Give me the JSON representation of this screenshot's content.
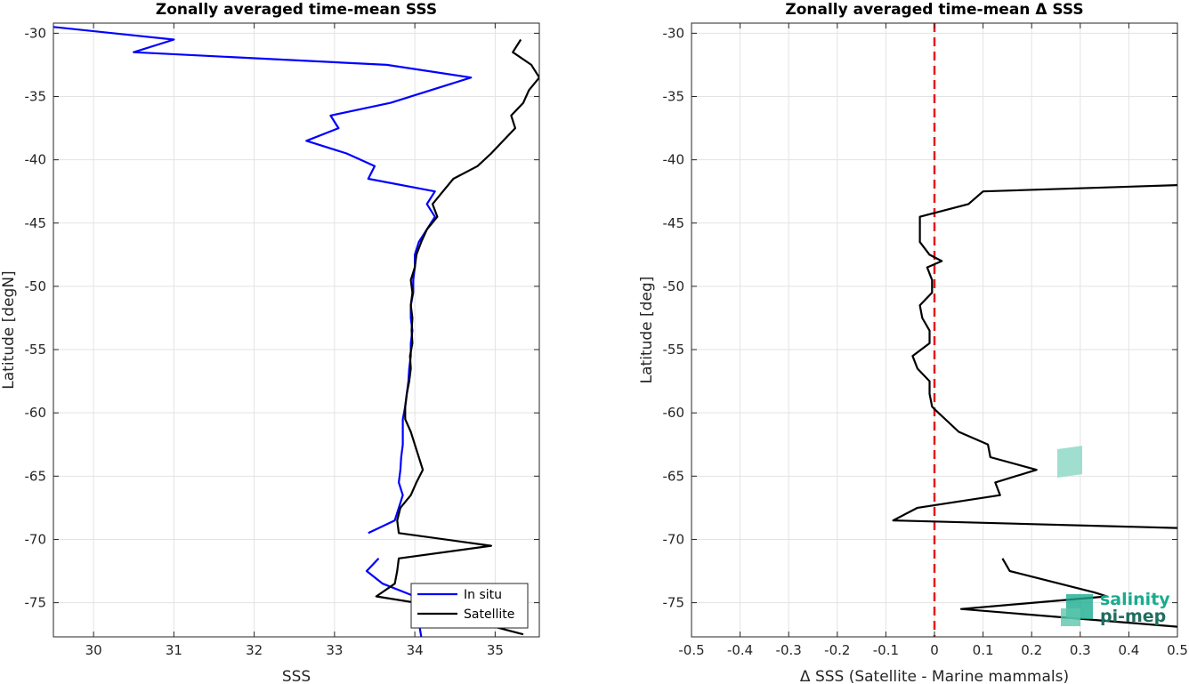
{
  "chart_data": [
    {
      "type": "line",
      "title": "Zonally averaged time-mean SSS",
      "xlabel": "SSS",
      "ylabel": "Latitude [degN]",
      "xlim": [
        29.5,
        35.55
      ],
      "ylim": [
        -77.7,
        -29.2
      ],
      "xticks": [
        30,
        31,
        32,
        33,
        34,
        35
      ],
      "yticks": [
        -30,
        -35,
        -40,
        -45,
        -50,
        -55,
        -60,
        -65,
        -70,
        -75
      ],
      "grid": true,
      "legend": "bottom-right",
      "series": [
        {
          "name": "In situ",
          "color": "#0000ff",
          "segments": [
            [
              {
                "x": 29.5,
                "y": -29.5
              },
              {
                "x": 31.0,
                "y": -30.5
              },
              {
                "x": 30.5,
                "y": -31.5
              },
              {
                "x": 33.65,
                "y": -32.5
              },
              {
                "x": 34.7,
                "y": -33.5
              },
              {
                "x": 33.7,
                "y": -35.5
              },
              {
                "x": 32.95,
                "y": -36.5
              },
              {
                "x": 33.05,
                "y": -37.5
              },
              {
                "x": 32.65,
                "y": -38.5
              },
              {
                "x": 33.15,
                "y": -39.5
              },
              {
                "x": 33.5,
                "y": -40.5
              },
              {
                "x": 33.42,
                "y": -41.5
              },
              {
                "x": 34.25,
                "y": -42.5
              },
              {
                "x": 34.15,
                "y": -43.5
              },
              {
                "x": 34.25,
                "y": -44.5
              },
              {
                "x": 34.15,
                "y": -45.5
              },
              {
                "x": 34.05,
                "y": -46.5
              },
              {
                "x": 34.0,
                "y": -47.5
              },
              {
                "x": 34.0,
                "y": -48.5
              },
              {
                "x": 33.98,
                "y": -49.5
              },
              {
                "x": 33.98,
                "y": -50.5
              },
              {
                "x": 33.95,
                "y": -51.5
              },
              {
                "x": 33.95,
                "y": -52.5
              },
              {
                "x": 33.97,
                "y": -53.5
              },
              {
                "x": 33.95,
                "y": -54.5
              },
              {
                "x": 33.95,
                "y": -55.5
              },
              {
                "x": 33.93,
                "y": -56.5
              },
              {
                "x": 33.92,
                "y": -57.5
              },
              {
                "x": 33.9,
                "y": -58.5
              },
              {
                "x": 33.88,
                "y": -59.5
              },
              {
                "x": 33.85,
                "y": -60.5
              },
              {
                "x": 33.85,
                "y": -61.5
              },
              {
                "x": 33.85,
                "y": -62.5
              },
              {
                "x": 33.83,
                "y": -63.5
              },
              {
                "x": 33.82,
                "y": -64.5
              },
              {
                "x": 33.8,
                "y": -65.5
              },
              {
                "x": 33.85,
                "y": -66.5
              },
              {
                "x": 33.8,
                "y": -67.5
              },
              {
                "x": 33.75,
                "y": -68.5
              },
              {
                "x": 33.42,
                "y": -69.5
              }
            ],
            [
              {
                "x": 33.55,
                "y": -71.5
              },
              {
                "x": 33.4,
                "y": -72.5
              },
              {
                "x": 33.6,
                "y": -73.5
              },
              {
                "x": 34.0,
                "y": -74.5
              },
              {
                "x": 34.1,
                "y": -75.5
              },
              {
                "x": 34.05,
                "y": -76.5
              },
              {
                "x": 34.08,
                "y": -77.7
              }
            ]
          ]
        },
        {
          "name": "Satellite",
          "color": "#000000",
          "segments": [
            [
              {
                "x": 35.32,
                "y": -30.5
              },
              {
                "x": 35.22,
                "y": -31.5
              },
              {
                "x": 35.45,
                "y": -32.5
              },
              {
                "x": 35.55,
                "y": -33.5
              },
              {
                "x": 35.42,
                "y": -34.5
              },
              {
                "x": 35.35,
                "y": -35.5
              },
              {
                "x": 35.2,
                "y": -36.5
              },
              {
                "x": 35.25,
                "y": -37.5
              },
              {
                "x": 35.1,
                "y": -38.5
              },
              {
                "x": 34.95,
                "y": -39.5
              },
              {
                "x": 34.78,
                "y": -40.5
              },
              {
                "x": 34.48,
                "y": -41.5
              },
              {
                "x": 34.35,
                "y": -42.5
              },
              {
                "x": 34.22,
                "y": -43.5
              },
              {
                "x": 34.28,
                "y": -44.5
              },
              {
                "x": 34.15,
                "y": -45.5
              },
              {
                "x": 34.08,
                "y": -46.5
              },
              {
                "x": 34.02,
                "y": -47.5
              },
              {
                "x": 34.0,
                "y": -48.5
              },
              {
                "x": 33.95,
                "y": -49.5
              },
              {
                "x": 33.97,
                "y": -50.5
              },
              {
                "x": 33.95,
                "y": -51.5
              },
              {
                "x": 33.97,
                "y": -52.5
              },
              {
                "x": 33.96,
                "y": -53.5
              },
              {
                "x": 33.97,
                "y": -54.5
              },
              {
                "x": 33.94,
                "y": -55.5
              },
              {
                "x": 33.95,
                "y": -56.5
              },
              {
                "x": 33.93,
                "y": -57.5
              },
              {
                "x": 33.9,
                "y": -58.5
              },
              {
                "x": 33.88,
                "y": -59.5
              },
              {
                "x": 33.88,
                "y": -60.5
              },
              {
                "x": 33.95,
                "y": -61.5
              },
              {
                "x": 34.0,
                "y": -62.5
              },
              {
                "x": 34.05,
                "y": -63.5
              },
              {
                "x": 34.1,
                "y": -64.5
              },
              {
                "x": 34.02,
                "y": -65.5
              },
              {
                "x": 33.95,
                "y": -66.5
              },
              {
                "x": 33.82,
                "y": -67.5
              },
              {
                "x": 33.78,
                "y": -68.5
              },
              {
                "x": 33.8,
                "y": -69.5
              },
              {
                "x": 34.95,
                "y": -70.5
              },
              {
                "x": 33.8,
                "y": -71.5
              },
              {
                "x": 33.78,
                "y": -72.5
              },
              {
                "x": 33.75,
                "y": -73.5
              },
              {
                "x": 33.52,
                "y": -74.5
              },
              {
                "x": 34.5,
                "y": -75.5
              },
              {
                "x": 34.75,
                "y": -76.5
              },
              {
                "x": 35.35,
                "y": -77.5
              }
            ]
          ]
        }
      ]
    },
    {
      "type": "line",
      "title": "Zonally averaged time-mean Δ SSS",
      "xlabel": "Δ SSS (Satellite - Marine mammals)",
      "ylabel": "Latitude [deg]",
      "xlim": [
        -0.5,
        0.5
      ],
      "ylim": [
        -77.7,
        -29.2
      ],
      "xticks": [
        -0.5,
        -0.4,
        -0.3,
        -0.2,
        -0.1,
        0,
        0.1,
        0.2,
        0.3,
        0.4,
        0.5
      ],
      "yticks": [
        -30,
        -35,
        -40,
        -45,
        -50,
        -55,
        -60,
        -65,
        -70,
        -75
      ],
      "grid": true,
      "reference_line": {
        "x": 0,
        "color": "#e41a1c",
        "style": "dashed"
      },
      "series": [
        {
          "color": "#000000",
          "segments": [
            [
              {
                "x": 0.5,
                "y": -42.0
              },
              {
                "x": 0.1,
                "y": -42.5
              },
              {
                "x": 0.07,
                "y": -43.5
              },
              {
                "x": -0.03,
                "y": -44.5
              },
              {
                "x": -0.03,
                "y": -45.5
              },
              {
                "x": -0.03,
                "y": -46.5
              },
              {
                "x": -0.01,
                "y": -47.5
              },
              {
                "x": 0.015,
                "y": -48.0
              },
              {
                "x": -0.015,
                "y": -48.5
              },
              {
                "x": -0.005,
                "y": -49.5
              },
              {
                "x": -0.005,
                "y": -50.5
              },
              {
                "x": -0.03,
                "y": -51.5
              },
              {
                "x": -0.025,
                "y": -52.5
              },
              {
                "x": -0.01,
                "y": -53.5
              },
              {
                "x": -0.01,
                "y": -54.5
              },
              {
                "x": -0.045,
                "y": -55.5
              },
              {
                "x": -0.035,
                "y": -56.5
              },
              {
                "x": -0.01,
                "y": -57.5
              },
              {
                "x": -0.01,
                "y": -58.5
              },
              {
                "x": -0.005,
                "y": -59.5
              },
              {
                "x": 0.0,
                "y": -59.7
              },
              {
                "x": 0.05,
                "y": -61.5
              },
              {
                "x": 0.11,
                "y": -62.5
              },
              {
                "x": 0.115,
                "y": -63.5
              },
              {
                "x": 0.21,
                "y": -64.5
              },
              {
                "x": 0.125,
                "y": -65.5
              },
              {
                "x": 0.135,
                "y": -66.5
              },
              {
                "x": -0.035,
                "y": -67.5
              },
              {
                "x": -0.085,
                "y": -68.5
              },
              {
                "x": 0.5,
                "y": -69.1
              }
            ],
            [
              {
                "x": 0.14,
                "y": -71.5
              },
              {
                "x": 0.155,
                "y": -72.5
              },
              {
                "x": 0.33,
                "y": -74.2
              },
              {
                "x": 0.355,
                "y": -74.5
              },
              {
                "x": 0.055,
                "y": -75.5
              },
              {
                "x": 0.5,
                "y": -76.9
              }
            ]
          ]
        }
      ]
    }
  ],
  "legend": {
    "items": [
      {
        "label": "In situ",
        "color": "#0000ff"
      },
      {
        "label": "Satellite",
        "color": "#000000"
      }
    ]
  },
  "logo": {
    "line1": "salinity",
    "line2": "pi-mep"
  }
}
